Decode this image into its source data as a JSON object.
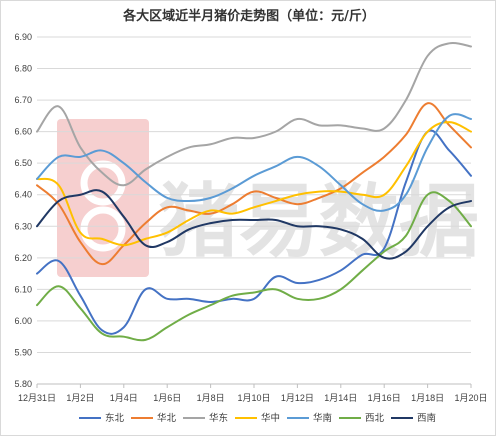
{
  "chart_data": {
    "type": "line",
    "title": "各大区域近半月猪价走势图（单位：元/斤）",
    "xlabel": "",
    "ylabel": "",
    "ylim": [
      5.8,
      6.9
    ],
    "yticks": [
      "5.80",
      "5.90",
      "6.00",
      "6.10",
      "6.20",
      "6.30",
      "6.40",
      "6.50",
      "6.60",
      "6.70",
      "6.80",
      "6.90"
    ],
    "categories": [
      "12月31日",
      "1月1日",
      "1月2日",
      "1月3日",
      "1月4日",
      "1月5日",
      "1月6日",
      "1月7日",
      "1月8日",
      "1月9日",
      "1月10日",
      "1月11日",
      "1月12日",
      "1月13日",
      "1月14日",
      "1月15日",
      "1月16日",
      "1月17日",
      "1月18日",
      "1月19日",
      "1月20日"
    ],
    "xtick_labels": [
      "12月31日",
      "1月2日",
      "1月4日",
      "1月6日",
      "1月8日",
      "1月10日",
      "1月12日",
      "1月14日",
      "1月16日",
      "1月18日",
      "1月20日"
    ],
    "grid": true,
    "legend_position": "bottom",
    "series": [
      {
        "name": "东北",
        "color": "#4472c4",
        "values": [
          6.15,
          6.19,
          6.08,
          5.97,
          5.98,
          6.1,
          6.07,
          6.07,
          6.06,
          6.07,
          6.07,
          6.14,
          6.12,
          6.13,
          6.16,
          6.21,
          6.23,
          6.44,
          6.6,
          6.54,
          6.46
        ]
      },
      {
        "name": "华北",
        "color": "#ed7d31",
        "values": [
          6.43,
          6.37,
          6.25,
          6.18,
          6.24,
          6.31,
          6.36,
          6.35,
          6.34,
          6.37,
          6.41,
          6.39,
          6.37,
          6.39,
          6.42,
          6.47,
          6.52,
          6.59,
          6.69,
          6.62,
          6.55
        ]
      },
      {
        "name": "华东",
        "color": "#a5a5a5",
        "values": [
          6.6,
          6.68,
          6.55,
          6.47,
          6.43,
          6.48,
          6.52,
          6.55,
          6.56,
          6.58,
          6.58,
          6.6,
          6.64,
          6.62,
          6.62,
          6.61,
          6.61,
          6.7,
          6.84,
          6.88,
          6.87
        ]
      },
      {
        "name": "华中",
        "color": "#ffc000",
        "values": [
          6.45,
          6.43,
          6.28,
          6.26,
          6.24,
          6.26,
          6.28,
          6.32,
          6.35,
          6.34,
          6.36,
          6.38,
          6.4,
          6.41,
          6.41,
          6.4,
          6.4,
          6.49,
          6.6,
          6.63,
          6.6
        ]
      },
      {
        "name": "华南",
        "color": "#5b9bd5",
        "values": [
          6.45,
          6.52,
          6.52,
          6.54,
          6.5,
          6.44,
          6.39,
          6.38,
          6.39,
          6.42,
          6.46,
          6.49,
          6.52,
          6.49,
          6.43,
          6.37,
          6.35,
          6.4,
          6.55,
          6.65,
          6.64
        ]
      },
      {
        "name": "西北",
        "color": "#70ad47",
        "values": [
          6.05,
          6.11,
          6.04,
          5.96,
          5.95,
          5.94,
          5.98,
          6.02,
          6.05,
          6.08,
          6.09,
          6.1,
          6.07,
          6.07,
          6.1,
          6.16,
          6.22,
          6.27,
          6.4,
          6.38,
          6.3
        ]
      },
      {
        "name": "西南",
        "color": "#203864",
        "values": [
          6.3,
          6.38,
          6.4,
          6.41,
          6.33,
          6.24,
          6.25,
          6.29,
          6.31,
          6.32,
          6.32,
          6.32,
          6.3,
          6.3,
          6.29,
          6.26,
          6.2,
          6.22,
          6.3,
          6.36,
          6.38
        ]
      }
    ]
  },
  "watermark": {
    "text": "猪易数据",
    "icon": "pig-logo-icon",
    "color": "#f5c8c8"
  }
}
